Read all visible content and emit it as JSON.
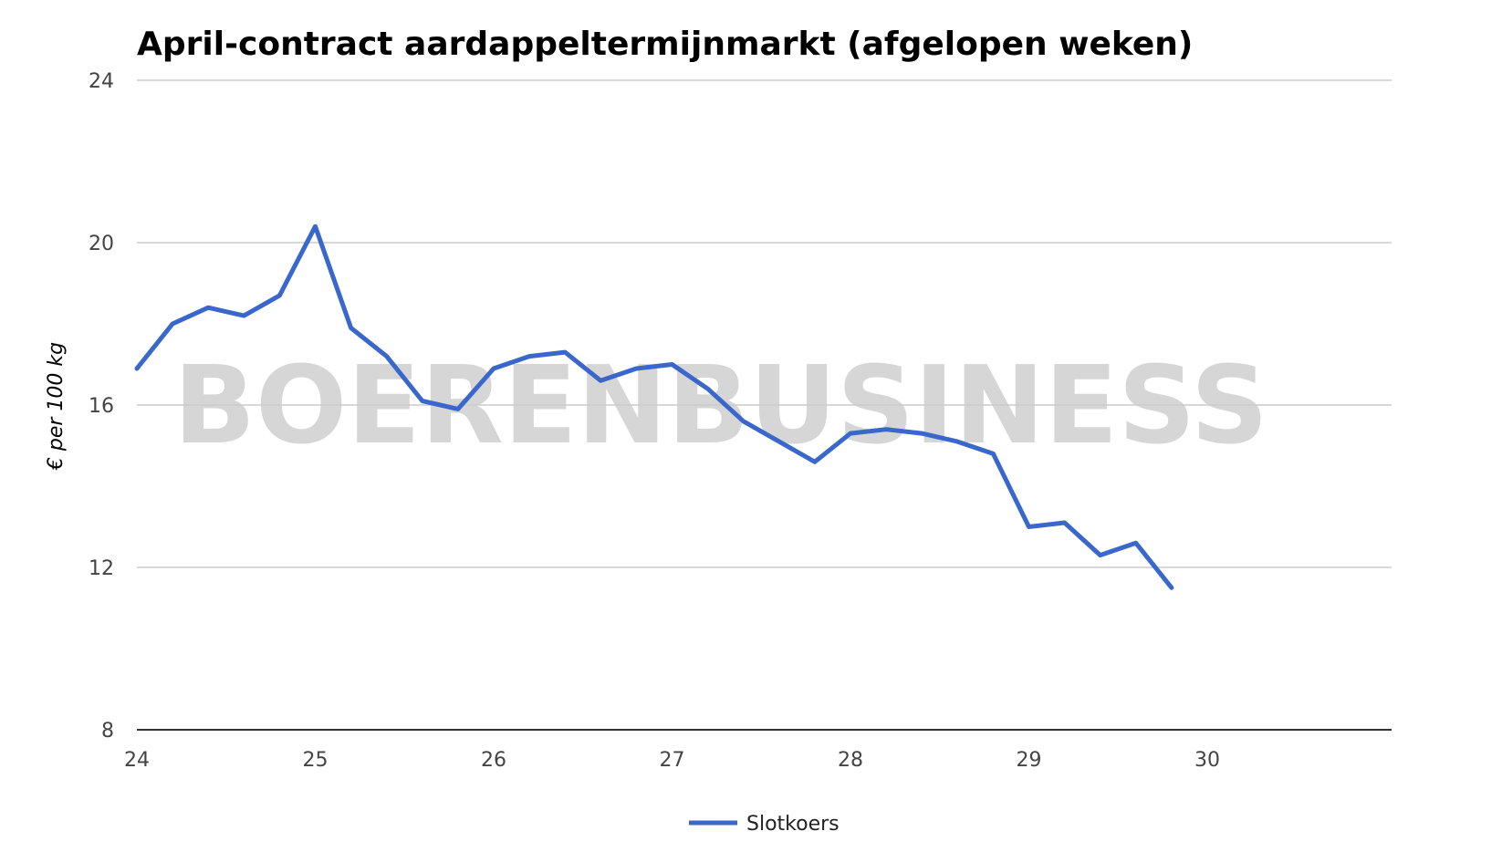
{
  "chart_data": {
    "type": "line",
    "title": "April-contract aardappeltermijnmarkt (afgelopen weken)",
    "xlabel": "",
    "ylabel": "€ per 100 kg",
    "xlim": [
      24,
      31
    ],
    "ylim": [
      8,
      24
    ],
    "x_ticks": [
      "24",
      "25",
      "26",
      "27",
      "28",
      "29",
      "30"
    ],
    "y_ticks": [
      "24",
      "20",
      "16",
      "12",
      "8"
    ],
    "grid": true,
    "legend": "bottom",
    "watermark": "BOERENBUSINESS",
    "colors": {
      "series": "#3a67cc",
      "grid": "#cccccc",
      "axis": "#333333"
    },
    "series": [
      {
        "name": "Slotkoers",
        "x": [
          24.0,
          24.2,
          24.4,
          24.6,
          24.8,
          25.0,
          25.2,
          25.4,
          25.6,
          25.8,
          26.0,
          26.2,
          26.4,
          26.6,
          26.8,
          27.0,
          27.2,
          27.4,
          27.6,
          27.8,
          28.0,
          28.2,
          28.4,
          28.6,
          28.8,
          29.0,
          29.2,
          29.4,
          29.6,
          29.8
        ],
        "values": [
          16.9,
          18.0,
          18.4,
          18.2,
          18.7,
          20.4,
          17.9,
          17.2,
          16.1,
          15.9,
          16.9,
          17.2,
          17.3,
          16.6,
          16.9,
          17.0,
          16.4,
          15.6,
          15.1,
          14.6,
          15.3,
          15.4,
          15.3,
          15.1,
          14.8,
          13.0,
          13.1,
          12.3,
          12.6,
          11.5
        ]
      }
    ]
  }
}
